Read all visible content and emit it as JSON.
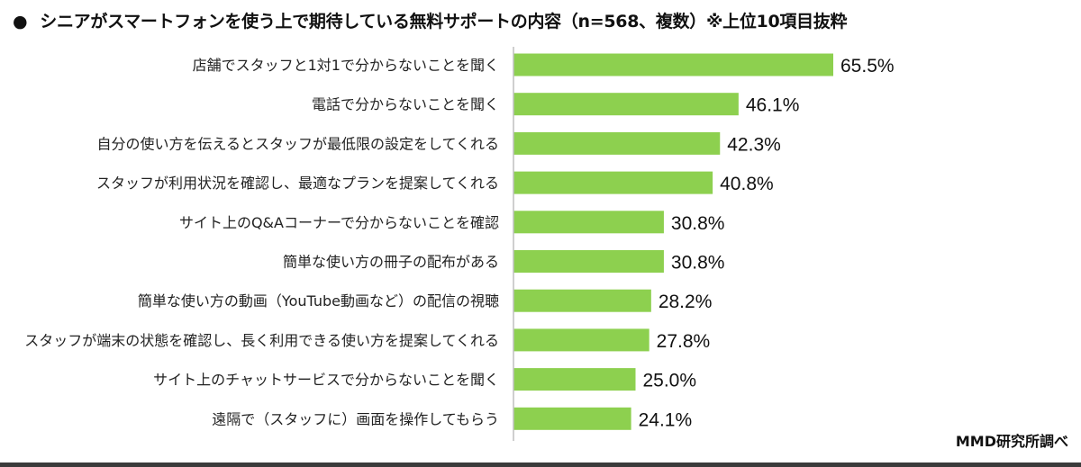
{
  "title_bullet": "●",
  "title": "シニアがスマートフォンを使う上で期待している無料サポートの内容（n=568、複数）※上位10項目抜粋",
  "source": "MMD研究所調べ",
  "colors": {
    "bar": "#8DD04F",
    "axis": "#bfbfbf"
  },
  "chart_data": {
    "type": "bar",
    "orientation": "horizontal",
    "title": "シニアがスマートフォンを使う上で期待している無料サポートの内容（n=568、複数）※上位10項目抜粋",
    "categories": [
      "店舗でスタッフと1対1で分からないことを聞く",
      "電話で分からないことを聞く",
      "自分の使い方を伝えるとスタッフが最低限の設定をしてくれる",
      "スタッフが利用状況を確認し、最適なプランを提案してくれる",
      "サイト上のQ&Aコーナーで分からないことを確認",
      "簡単な使い方の冊子の配布がある",
      "簡単な使い方の動画（YouTube動画など）の配信の視聴",
      "スタッフが端末の状態を確認し、長く利用できる使い方を提案してくれる",
      "サイト上のチャットサービスで分からないことを聞く",
      "遠隔で（スタッフに）画面を操作してもらう"
    ],
    "values": [
      65.5,
      46.1,
      42.3,
      40.8,
      30.8,
      30.8,
      28.2,
      27.8,
      25.0,
      24.1
    ],
    "value_labels": [
      "65.5%",
      "46.1%",
      "42.3%",
      "40.8%",
      "30.8%",
      "30.8%",
      "28.2%",
      "27.8%",
      "25.0%",
      "24.1%"
    ],
    "xlim": [
      0,
      65.5
    ],
    "grid": false,
    "legend": "none"
  }
}
